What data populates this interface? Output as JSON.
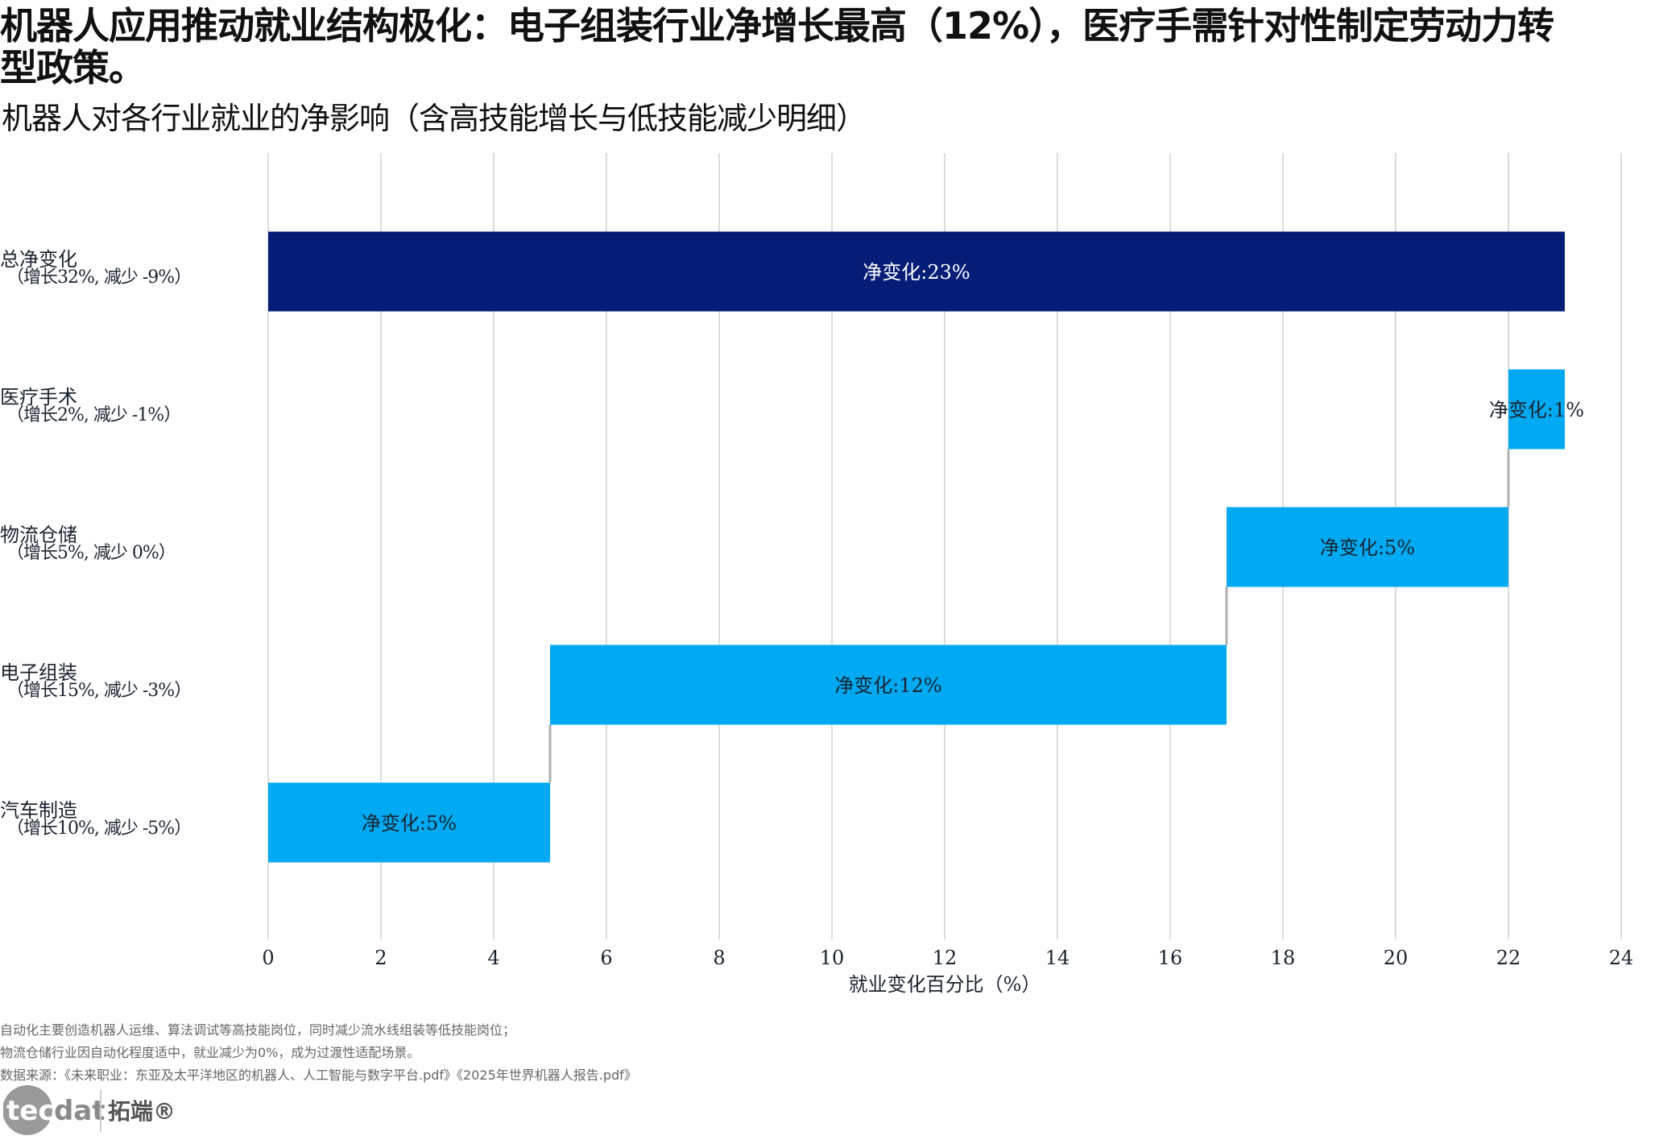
{
  "title": "机器人应用推动就业结构极化：电子组装行业净增长最高（12%），医疗手需针对性制定劳动力转型政策。",
  "subtitle": "机器人对各行业就业的净影响（含高技能增长与低技能减少明细）",
  "chart_data": {
    "type": "bar",
    "subtype": "waterfall-horizontal",
    "orientation": "horizontal",
    "categories": [
      {
        "name": "总净变化",
        "detail": "（增长32%, 减少 -9%）"
      },
      {
        "name": "医疗手术",
        "detail": "（增长2%, 减少 -1%）"
      },
      {
        "name": "物流仓储",
        "detail": "（增长5%, 减少 0%）"
      },
      {
        "name": "电子组装",
        "detail": "（增长15%, 减少 -3%）"
      },
      {
        "name": "汽车制造",
        "detail": "（增长10%, 减少 -5%）"
      }
    ],
    "bars": [
      {
        "start": 0,
        "end": 23,
        "value": 23,
        "label": "净变化:23%",
        "kind": "total"
      },
      {
        "start": 22,
        "end": 23,
        "value": 1,
        "label": "净变化:1%",
        "kind": "step"
      },
      {
        "start": 17,
        "end": 22,
        "value": 5,
        "label": "净变化:5%",
        "kind": "step"
      },
      {
        "start": 5,
        "end": 17,
        "value": 12,
        "label": "净变化:12%",
        "kind": "step"
      },
      {
        "start": 0,
        "end": 5,
        "value": 5,
        "label": "净变化:5%",
        "kind": "step"
      }
    ],
    "xlabel": "就业变化百分比（%）",
    "xticks": [
      "0",
      "2",
      "4",
      "6",
      "8",
      "10",
      "12",
      "14",
      "16",
      "18",
      "20",
      "22",
      "24"
    ],
    "xlim": [
      0,
      24
    ],
    "grid": "vertical",
    "colors": {
      "total": "#061d78",
      "step": "#00a9f1",
      "grid": "#dcdcdc",
      "connector": "#b0b0b0"
    }
  },
  "footnotes": [
    "自动化主要创造机器人运维、算法调试等高技能岗位，同时减少流水线组装等低技能岗位；",
    "物流仓储行业因自动化程度适中，就业减少为0%，成为过渡性适配场景。",
    "数据来源：《未来职业：东亚及太平洋地区的机器人、人工智能与数字平台.pdf》《2025年世界机器人报告.pdf》"
  ],
  "logo": {
    "text_en": "tecdat",
    "text_cn": "拓端®"
  }
}
